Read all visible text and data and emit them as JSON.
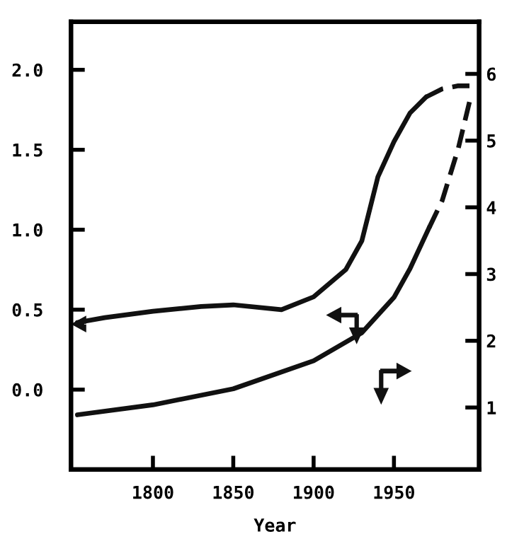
{
  "chart_data": {
    "type": "line",
    "xlabel": "Year",
    "xlim": [
      1749,
      2003
    ],
    "xticks": [
      1800,
      1850,
      1900,
      1950
    ],
    "ylim": [
      -0.5,
      2.3
    ],
    "yticks": [
      {
        "value": 0,
        "label": "0.0"
      },
      {
        "value": 0.5,
        "label": "0.5"
      },
      {
        "value": 1,
        "label": "1.0"
      },
      {
        "value": 1.5,
        "label": "1.5"
      },
      {
        "value": 2,
        "label": "2.0"
      }
    ],
    "y2lim": [
      0.07,
      6.78
    ],
    "y2ticks": [
      1,
      2,
      3,
      4,
      5,
      6
    ],
    "grid": false,
    "legend": false,
    "marker": "none",
    "series": [
      {
        "color": "#111111",
        "line_style": "solid",
        "x": [
          1753,
          1770,
          1800,
          1830,
          1850,
          1880,
          1900,
          1920,
          1930,
          1940,
          1950,
          1960,
          1970
        ],
        "values": [
          0.42,
          0.45,
          0.49,
          0.52,
          0.53,
          0.5,
          0.58,
          0.75,
          0.93,
          1.33,
          1.55,
          1.73,
          1.83
        ]
      },
      {
        "color": "#111111",
        "line_style": "dashed",
        "x": [
          1970,
          1980,
          1990,
          1997
        ],
        "values": [
          1.83,
          1.88,
          1.9,
          1.9
        ]
      },
      {
        "color": "#111111",
        "line_style": "solid",
        "axis": "y2",
        "x": [
          1753,
          1800,
          1850,
          1900,
          1930,
          1950,
          1960,
          1972
        ],
        "values": [
          0.89,
          1.04,
          1.28,
          1.7,
          2.12,
          2.65,
          3.08,
          3.7
        ]
      },
      {
        "color": "#111111",
        "line_style": "dashed",
        "axis": "y2",
        "x": [
          1972,
          1980,
          1990,
          1997
        ],
        "values": [
          3.7,
          4.1,
          4.88,
          5.58
        ]
      }
    ]
  }
}
